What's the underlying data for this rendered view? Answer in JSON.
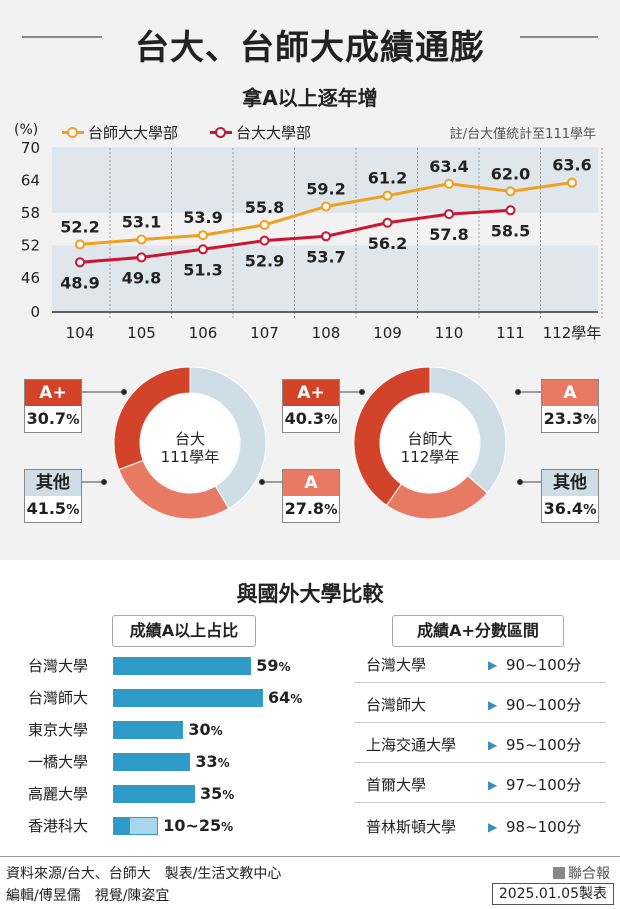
{
  "header": {
    "title": "台大、台師大成績通膨",
    "subtitle": "拿A以上逐年增"
  },
  "colors": {
    "ntnu": "#f0a020",
    "ntu": "#cc1530",
    "aplus": "#d2432a",
    "a": "#e87a64",
    "other": "#cfdde6",
    "bar": "#2e9cc7",
    "barLight": "#a9d7ea"
  },
  "legend": {
    "unit": "(%)",
    "ntnu": "台師大大學部",
    "ntu": "台大大學部",
    "note": "註/台大僅統計至111學年"
  },
  "chart_data": [
    {
      "type": "line",
      "title": "拿A以上逐年增",
      "ylabel": "(%)",
      "ylim": [
        0,
        70
      ],
      "y_ticks": [
        "0",
        "46",
        "52",
        "58",
        "64",
        "70"
      ],
      "x_ticks": [
        "104",
        "105",
        "106",
        "107",
        "108",
        "109",
        "110",
        "111",
        "112學年"
      ],
      "x": [
        104,
        105,
        106,
        107,
        108,
        109,
        110,
        111,
        112
      ],
      "series": [
        {
          "name": "台師大大學部",
          "color": "#f0a020",
          "values": [
            52.2,
            53.1,
            53.9,
            55.8,
            59.2,
            61.2,
            63.4,
            62.0,
            63.6
          ],
          "labels": [
            "52.2",
            "53.1",
            "53.9",
            "55.8",
            "59.2",
            "61.2",
            "63.4",
            "62.0",
            "63.6"
          ]
        },
        {
          "name": "台大大學部",
          "color": "#cc1530",
          "values": [
            48.9,
            49.8,
            51.3,
            52.9,
            53.7,
            56.2,
            57.8,
            58.5,
            null
          ],
          "labels": [
            "48.9",
            "49.8",
            "51.3",
            "52.9",
            "53.7",
            "56.2",
            "57.8",
            "58.5",
            ""
          ]
        }
      ],
      "grid": true
    },
    {
      "type": "pie",
      "center_label": [
        "台大",
        "111學年"
      ],
      "slices": [
        {
          "label": "A+",
          "value": 30.7,
          "text": "30.7",
          "color": "#d2432a"
        },
        {
          "label": "A",
          "value": 27.8,
          "text": "27.8",
          "color": "#e87a64"
        },
        {
          "label": "其他",
          "value": 41.5,
          "text": "41.5",
          "color": "#cfdde6"
        }
      ]
    },
    {
      "type": "pie",
      "center_label": [
        "台師大",
        "112學年"
      ],
      "slices": [
        {
          "label": "A+",
          "value": 40.3,
          "text": "40.3",
          "color": "#d2432a"
        },
        {
          "label": "A",
          "value": 23.3,
          "text": "23.3",
          "color": "#e87a64"
        },
        {
          "label": "其他",
          "value": 36.4,
          "text": "36.4",
          "color": "#cfdde6"
        }
      ]
    },
    {
      "type": "bar",
      "title": "成績A以上占比",
      "categories": [
        "台灣大學",
        "台灣師大",
        "東京大學",
        "一橋大學",
        "高麗大學",
        "香港科大"
      ],
      "values": [
        59,
        64,
        30,
        33,
        35,
        [
          10,
          25
        ]
      ],
      "labels": [
        "59",
        "64",
        "30",
        "33",
        "35",
        "10~25"
      ]
    }
  ],
  "comparison": {
    "title": "與國外大學比較",
    "left_title": "成績A以上占比",
    "right_title": "成績A+分數區間",
    "percent_sign": "%",
    "ranges": [
      {
        "name": "台灣大學",
        "range": "90~100分"
      },
      {
        "name": "台灣師大",
        "range": "90~100分"
      },
      {
        "name": "上海交通大學",
        "range": "95~100分"
      },
      {
        "name": "首爾大學",
        "range": "97~100分"
      },
      {
        "name": "普林斯頓大學",
        "range": "98~100分"
      }
    ]
  },
  "footer": {
    "source": "資料來源/台大、台師大　製表/生活文教中心",
    "editor": "編輯/傅昱儒　視覺/陳姿宜",
    "brand": "聯合報",
    "date": "2025.01.05製表"
  }
}
